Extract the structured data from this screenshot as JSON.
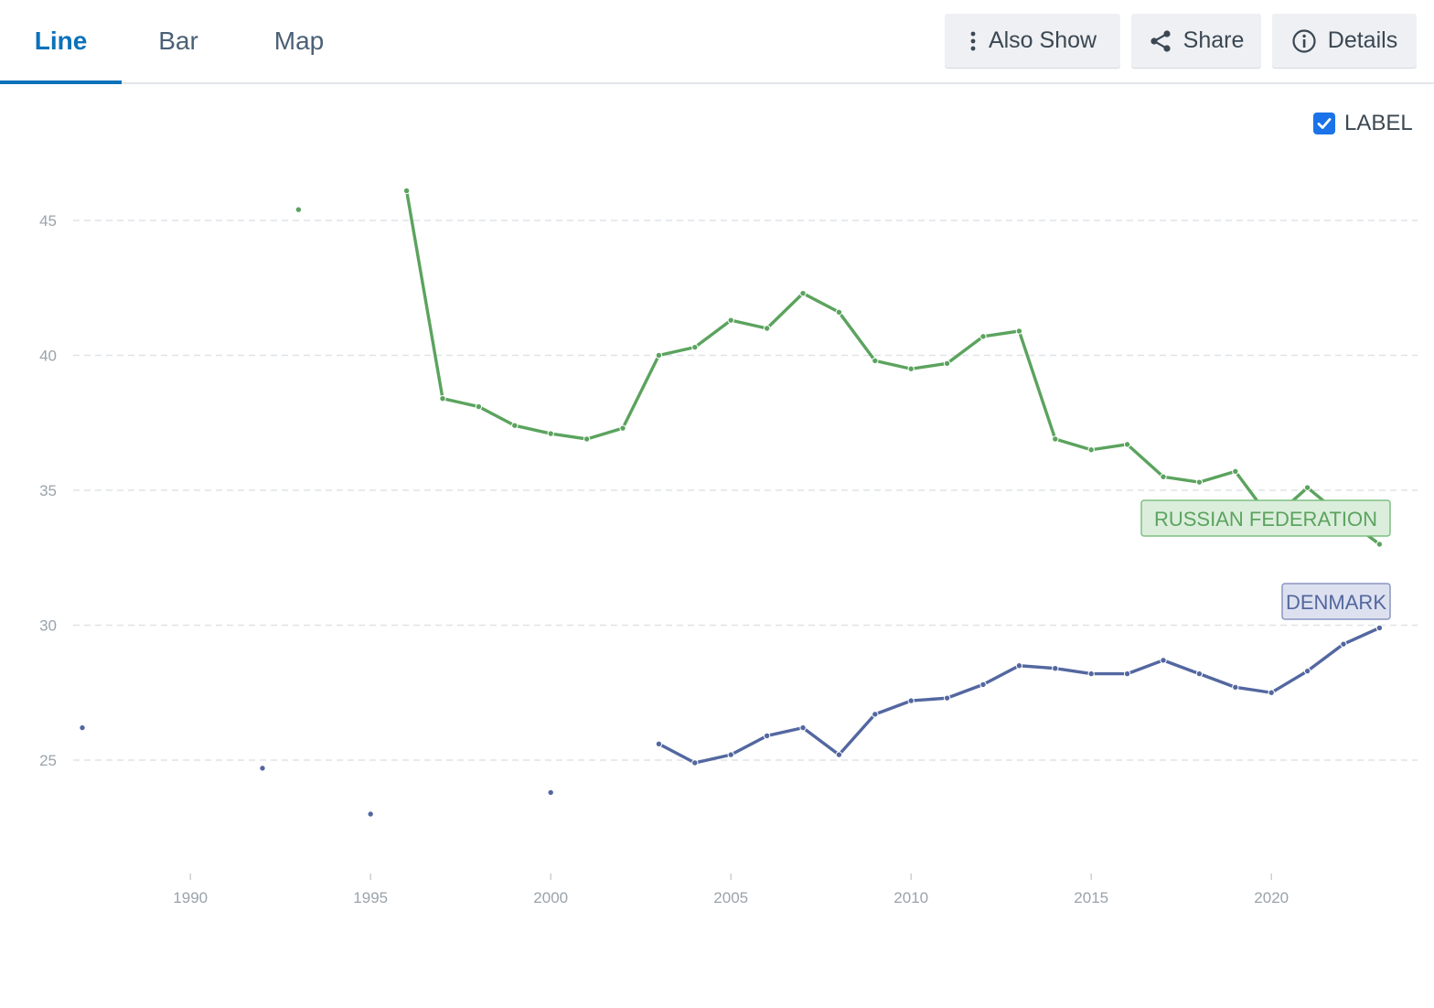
{
  "tabs": [
    {
      "label": "Line",
      "active": true
    },
    {
      "label": "Bar",
      "active": false
    },
    {
      "label": "Map",
      "active": false
    }
  ],
  "toolbar": {
    "also_show": "Also Show",
    "share": "Share",
    "details": "Details"
  },
  "label_toggle": {
    "label": "LABEL",
    "checked": true
  },
  "colors": {
    "accent": "#0b72b9",
    "russia": "#5ba35e",
    "denmark": "#5367a0",
    "checkbox": "#1a73e8"
  },
  "chart_data": {
    "type": "line",
    "xlim": [
      1986,
      2024
    ],
    "ylim": [
      22,
      46.5
    ],
    "x_ticks": [
      1990,
      1995,
      2000,
      2005,
      2010,
      2015,
      2020
    ],
    "y_ticks": [
      25,
      30,
      35,
      40,
      45
    ],
    "grid": "horizontal dashed",
    "series": [
      {
        "name": "RUSSIAN FEDERATION",
        "color": "#5ba35e",
        "points": [
          [
            1993,
            45.4
          ],
          [
            1996,
            46.1
          ],
          [
            1997,
            38.4
          ],
          [
            1998,
            38.1
          ],
          [
            1999,
            37.4
          ],
          [
            2000,
            37.1
          ],
          [
            2001,
            36.9
          ],
          [
            2002,
            37.3
          ],
          [
            2003,
            40.0
          ],
          [
            2004,
            40.3
          ],
          [
            2005,
            41.3
          ],
          [
            2006,
            41.0
          ],
          [
            2007,
            42.3
          ],
          [
            2008,
            41.6
          ],
          [
            2009,
            39.8
          ],
          [
            2010,
            39.5
          ],
          [
            2011,
            39.7
          ],
          [
            2012,
            40.7
          ],
          [
            2013,
            40.9
          ],
          [
            2014,
            36.9
          ],
          [
            2015,
            36.5
          ],
          [
            2016,
            36.7
          ],
          [
            2017,
            35.5
          ],
          [
            2018,
            35.3
          ],
          [
            2019,
            35.7
          ],
          [
            2020,
            33.9
          ],
          [
            2021,
            35.1
          ],
          [
            2022,
            34.0
          ],
          [
            2023,
            33.0
          ]
        ]
      },
      {
        "name": "DENMARK",
        "color": "#5367a0",
        "points": [
          [
            1987,
            26.2
          ],
          [
            1992,
            24.7
          ],
          [
            1995,
            23.0
          ],
          [
            2000,
            23.8
          ],
          [
            2003,
            25.6
          ],
          [
            2004,
            24.9
          ],
          [
            2005,
            25.2
          ],
          [
            2006,
            25.9
          ],
          [
            2007,
            26.2
          ],
          [
            2008,
            25.2
          ],
          [
            2009,
            26.7
          ],
          [
            2010,
            27.2
          ],
          [
            2011,
            27.3
          ],
          [
            2012,
            27.8
          ],
          [
            2013,
            28.5
          ],
          [
            2014,
            28.4
          ],
          [
            2015,
            28.2
          ],
          [
            2016,
            28.2
          ],
          [
            2017,
            28.7
          ],
          [
            2018,
            28.2
          ],
          [
            2019,
            27.7
          ],
          [
            2020,
            27.5
          ],
          [
            2021,
            28.3
          ],
          [
            2022,
            29.3
          ],
          [
            2023,
            29.9
          ]
        ]
      }
    ]
  }
}
